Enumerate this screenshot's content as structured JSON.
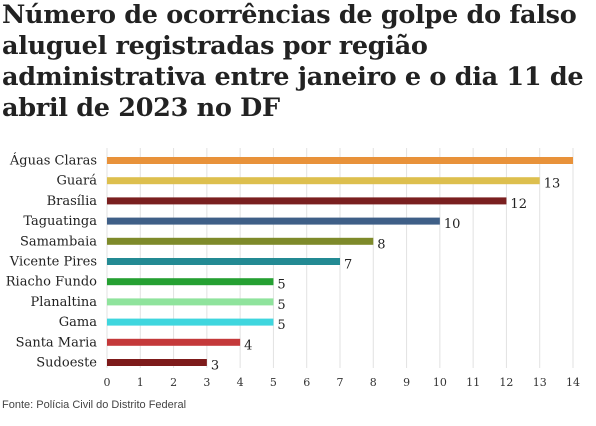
{
  "title": "Número de ocorrências de golpe do falso aluguel registradas por região administrativa entre janeiro e o dia 11 de abril de 2023 no DF",
  "source": "Fonte: Polícia Civil do Distrito Federal",
  "chart_data": {
    "type": "bar",
    "orientation": "horizontal",
    "title": "Número de ocorrências de golpe do falso aluguel registradas por região administrativa entre janeiro e o dia 11 de abril de 2023 no DF",
    "xlabel": "",
    "ylabel": "",
    "xlim": [
      0,
      14
    ],
    "x_ticks": [
      "0",
      "1",
      "2",
      "3",
      "4",
      "5",
      "6",
      "7",
      "8",
      "9",
      "10",
      "11",
      "12",
      "13",
      "14"
    ],
    "grid": true,
    "categories": [
      "Águas Claras",
      "Guará",
      "Brasília",
      "Taguatinga",
      "Samambaia",
      "Vicente Pires",
      "Riacho Fundo",
      "Planaltina",
      "Gama",
      "Santa Maria",
      "Sudoeste"
    ],
    "values": [
      14,
      13,
      12,
      10,
      8,
      7,
      5,
      5,
      5,
      4,
      3
    ],
    "value_labels": [
      "",
      "13",
      "12",
      "10",
      "8",
      "7",
      "5",
      "5",
      "5",
      "4",
      "3"
    ],
    "colors": [
      "#E8923A",
      "#DDBF4E",
      "#7A1F1F",
      "#3F5F87",
      "#7E8A2A",
      "#238A93",
      "#25A032",
      "#8FE39C",
      "#3FD6DE",
      "#C4393A",
      "#7D1A1A"
    ]
  }
}
